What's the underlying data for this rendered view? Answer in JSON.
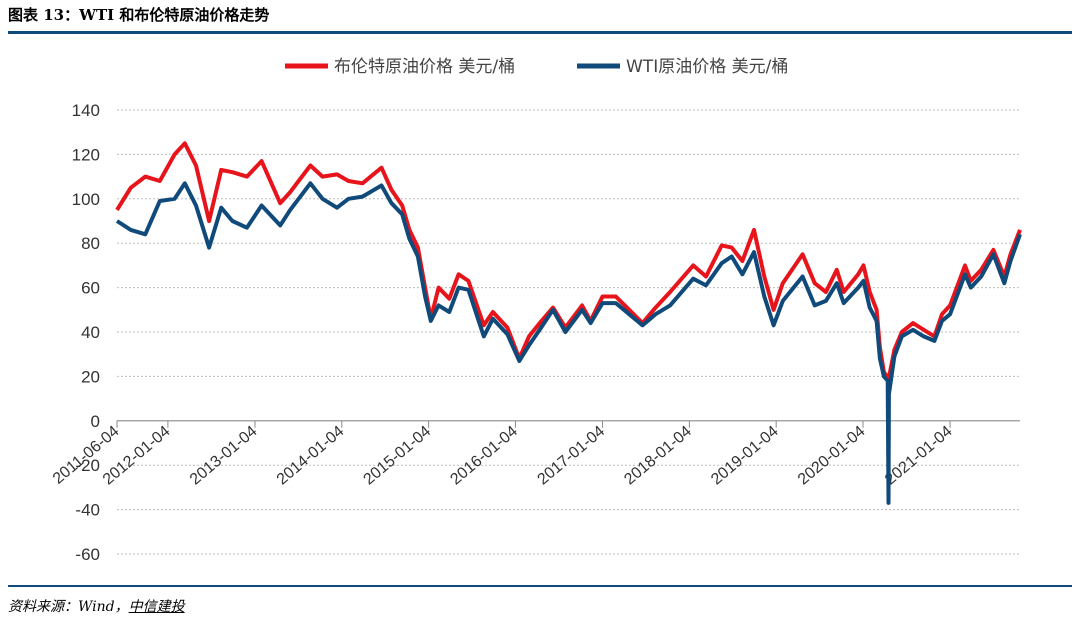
{
  "figure": {
    "title": "图表 13：WTI 和布伦特原油价格走势",
    "source_label": "资料来源：Wind，",
    "source_org": "中信建投"
  },
  "colors": {
    "brent": "#e8141c",
    "wti": "#0f4a7a",
    "grid": "#bdbdbd",
    "rule": "#0f4a7a"
  },
  "chart_data": {
    "type": "line",
    "title": "",
    "xlabel": "",
    "ylabel": "",
    "ylim": [
      -60,
      140
    ],
    "yticks": [
      140,
      120,
      100,
      80,
      60,
      40,
      20,
      0,
      -20,
      -40,
      -60
    ],
    "xlim": [
      "2011-06-04",
      "2021-10-25"
    ],
    "xticks": [
      "2011-06-04",
      "2012-01-04",
      "2013-01-04",
      "2014-01-04",
      "2015-01-04",
      "2016-01-04",
      "2017-01-04",
      "2018-01-04",
      "2019-01-04",
      "2020-01-04",
      "2021-01-04"
    ],
    "grid": true,
    "legend_position": "top-center",
    "series": [
      {
        "name": "布伦特原油价格 美元/桶",
        "color": "#e8141c",
        "points": [
          [
            "2011-06-04",
            95
          ],
          [
            "2011-08-01",
            105
          ],
          [
            "2011-10-01",
            110
          ],
          [
            "2011-12-01",
            108
          ],
          [
            "2012-02-01",
            120
          ],
          [
            "2012-03-15",
            125
          ],
          [
            "2012-05-01",
            115
          ],
          [
            "2012-06-25",
            90
          ],
          [
            "2012-08-15",
            113
          ],
          [
            "2012-10-01",
            112
          ],
          [
            "2012-12-01",
            110
          ],
          [
            "2013-02-01",
            117
          ],
          [
            "2013-04-20",
            98
          ],
          [
            "2013-06-01",
            103
          ],
          [
            "2013-08-25",
            115
          ],
          [
            "2013-10-15",
            110
          ],
          [
            "2013-12-15",
            111
          ],
          [
            "2014-02-01",
            108
          ],
          [
            "2014-04-01",
            107
          ],
          [
            "2014-06-20",
            114
          ],
          [
            "2014-08-01",
            104
          ],
          [
            "2014-09-15",
            97
          ],
          [
            "2014-10-15",
            86
          ],
          [
            "2014-11-20",
            78
          ],
          [
            "2014-12-20",
            60
          ],
          [
            "2015-01-13",
            46
          ],
          [
            "2015-02-15",
            60
          ],
          [
            "2015-04-01",
            55
          ],
          [
            "2015-05-10",
            66
          ],
          [
            "2015-06-20",
            63
          ],
          [
            "2015-08-24",
            43
          ],
          [
            "2015-10-01",
            49
          ],
          [
            "2015-12-01",
            42
          ],
          [
            "2016-01-20",
            28
          ],
          [
            "2016-03-01",
            38
          ],
          [
            "2016-04-15",
            44
          ],
          [
            "2016-06-10",
            51
          ],
          [
            "2016-08-01",
            42
          ],
          [
            "2016-10-10",
            52
          ],
          [
            "2016-11-15",
            45
          ],
          [
            "2017-01-04",
            56
          ],
          [
            "2017-03-01",
            56
          ],
          [
            "2017-06-21",
            44
          ],
          [
            "2017-08-15",
            51
          ],
          [
            "2017-10-15",
            58
          ],
          [
            "2018-01-20",
            70
          ],
          [
            "2018-03-15",
            65
          ],
          [
            "2018-05-20",
            79
          ],
          [
            "2018-07-01",
            78
          ],
          [
            "2018-08-15",
            72
          ],
          [
            "2018-10-03",
            86
          ],
          [
            "2018-11-15",
            65
          ],
          [
            "2018-12-24",
            50
          ],
          [
            "2019-02-01",
            62
          ],
          [
            "2019-04-25",
            75
          ],
          [
            "2019-06-15",
            62
          ],
          [
            "2019-08-01",
            58
          ],
          [
            "2019-09-16",
            68
          ],
          [
            "2019-10-15",
            58
          ],
          [
            "2019-12-15",
            66
          ],
          [
            "2020-01-06",
            70
          ],
          [
            "2020-02-01",
            58
          ],
          [
            "2020-03-01",
            50
          ],
          [
            "2020-03-15",
            33
          ],
          [
            "2020-04-01",
            22
          ],
          [
            "2020-04-21",
            19
          ],
          [
            "2020-05-15",
            32
          ],
          [
            "2020-06-15",
            40
          ],
          [
            "2020-08-01",
            44
          ],
          [
            "2020-09-15",
            41
          ],
          [
            "2020-10-30",
            38
          ],
          [
            "2020-12-01",
            48
          ],
          [
            "2021-01-04",
            52
          ],
          [
            "2021-03-08",
            70
          ],
          [
            "2021-04-01",
            63
          ],
          [
            "2021-05-15",
            68
          ],
          [
            "2021-07-05",
            77
          ],
          [
            "2021-08-20",
            65
          ],
          [
            "2021-09-15",
            75
          ],
          [
            "2021-10-25",
            86
          ]
        ]
      },
      {
        "name": "WTI原油价格 美元/桶",
        "color": "#0f4a7a",
        "points": [
          [
            "2011-06-04",
            90
          ],
          [
            "2011-08-01",
            86
          ],
          [
            "2011-10-01",
            84
          ],
          [
            "2011-12-01",
            99
          ],
          [
            "2012-02-01",
            100
          ],
          [
            "2012-03-15",
            107
          ],
          [
            "2012-05-01",
            97
          ],
          [
            "2012-06-25",
            78
          ],
          [
            "2012-08-15",
            96
          ],
          [
            "2012-10-01",
            90
          ],
          [
            "2012-12-01",
            87
          ],
          [
            "2013-02-01",
            97
          ],
          [
            "2013-04-20",
            88
          ],
          [
            "2013-06-01",
            95
          ],
          [
            "2013-08-25",
            107
          ],
          [
            "2013-10-15",
            100
          ],
          [
            "2013-12-15",
            96
          ],
          [
            "2014-02-01",
            100
          ],
          [
            "2014-04-01",
            101
          ],
          [
            "2014-06-20",
            106
          ],
          [
            "2014-08-01",
            98
          ],
          [
            "2014-09-15",
            93
          ],
          [
            "2014-10-15",
            82
          ],
          [
            "2014-11-20",
            74
          ],
          [
            "2014-12-20",
            56
          ],
          [
            "2015-01-13",
            45
          ],
          [
            "2015-02-15",
            52
          ],
          [
            "2015-04-01",
            49
          ],
          [
            "2015-05-10",
            60
          ],
          [
            "2015-06-20",
            59
          ],
          [
            "2015-08-24",
            38
          ],
          [
            "2015-10-01",
            46
          ],
          [
            "2015-12-01",
            39
          ],
          [
            "2016-01-20",
            27
          ],
          [
            "2016-03-01",
            34
          ],
          [
            "2016-04-15",
            41
          ],
          [
            "2016-06-10",
            50
          ],
          [
            "2016-08-01",
            40
          ],
          [
            "2016-10-10",
            50
          ],
          [
            "2016-11-15",
            44
          ],
          [
            "2017-01-04",
            53
          ],
          [
            "2017-03-01",
            53
          ],
          [
            "2017-06-21",
            43
          ],
          [
            "2017-08-15",
            48
          ],
          [
            "2017-10-15",
            52
          ],
          [
            "2018-01-20",
            64
          ],
          [
            "2018-03-15",
            61
          ],
          [
            "2018-05-20",
            71
          ],
          [
            "2018-07-01",
            74
          ],
          [
            "2018-08-15",
            66
          ],
          [
            "2018-10-03",
            76
          ],
          [
            "2018-11-15",
            56
          ],
          [
            "2018-12-24",
            43
          ],
          [
            "2019-02-01",
            54
          ],
          [
            "2019-04-25",
            65
          ],
          [
            "2019-06-15",
            52
          ],
          [
            "2019-08-01",
            54
          ],
          [
            "2019-09-16",
            62
          ],
          [
            "2019-10-15",
            53
          ],
          [
            "2019-12-15",
            60
          ],
          [
            "2020-01-06",
            63
          ],
          [
            "2020-02-01",
            51
          ],
          [
            "2020-03-01",
            45
          ],
          [
            "2020-03-15",
            28
          ],
          [
            "2020-04-01",
            20
          ],
          [
            "2020-04-17",
            18
          ],
          [
            "2020-04-20",
            -37
          ],
          [
            "2020-04-22",
            12
          ],
          [
            "2020-05-15",
            29
          ],
          [
            "2020-06-15",
            38
          ],
          [
            "2020-08-01",
            41
          ],
          [
            "2020-09-15",
            38
          ],
          [
            "2020-10-30",
            36
          ],
          [
            "2020-12-01",
            45
          ],
          [
            "2021-01-04",
            48
          ],
          [
            "2021-03-08",
            66
          ],
          [
            "2021-04-01",
            60
          ],
          [
            "2021-05-15",
            65
          ],
          [
            "2021-07-05",
            75
          ],
          [
            "2021-08-20",
            62
          ],
          [
            "2021-09-15",
            72
          ],
          [
            "2021-10-25",
            84
          ]
        ]
      }
    ]
  }
}
